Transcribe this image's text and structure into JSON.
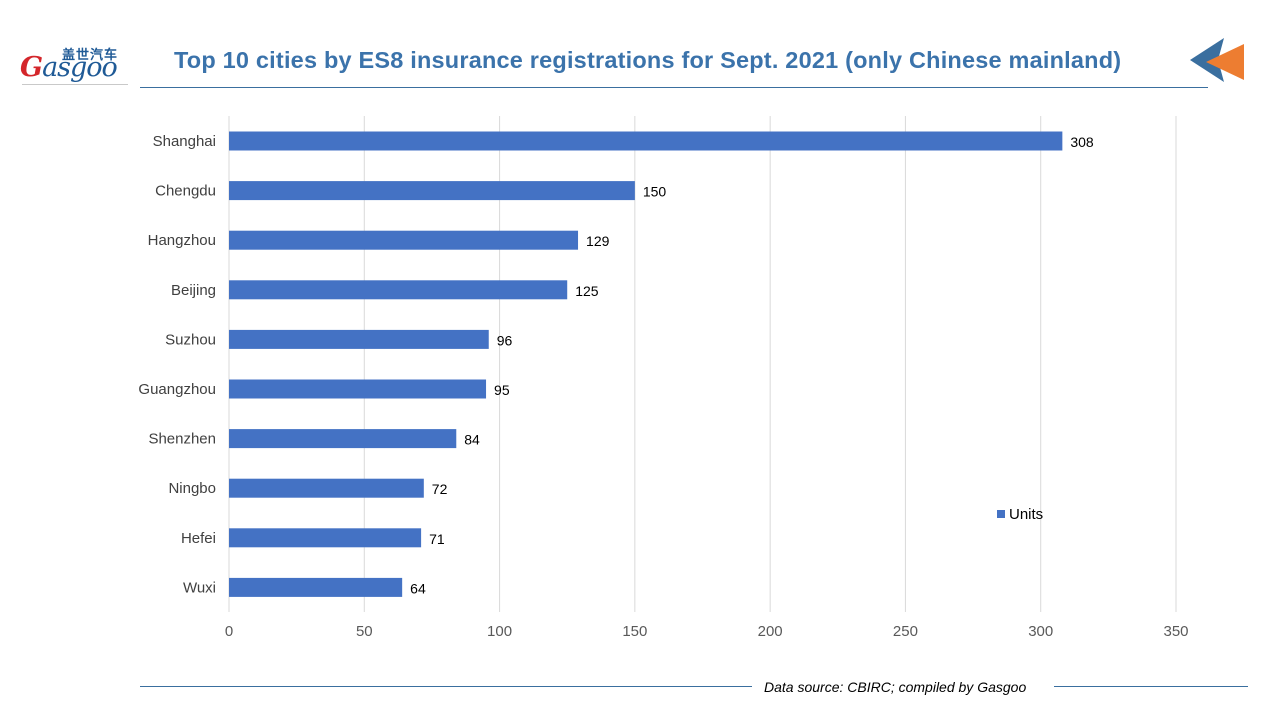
{
  "logo": {
    "cn": "盖世汽车",
    "en_rest": "asgoo"
  },
  "chart_data": {
    "type": "bar",
    "orientation": "horizontal",
    "title": "Top 10 cities by ES8 insurance registrations for Sept. 2021 (only Chinese mainland)",
    "categories": [
      "Shanghai",
      "Chengdu",
      "Hangzhou",
      "Beijing",
      "Suzhou",
      "Guangzhou",
      "Shenzhen",
      "Ningbo",
      "Hefei",
      "Wuxi"
    ],
    "series": [
      {
        "name": "Units",
        "values": [
          308,
          150,
          129,
          125,
          96,
          95,
          84,
          72,
          71,
          64
        ]
      }
    ],
    "xlim": [
      0,
      350
    ],
    "xticks": [
      0,
      50,
      100,
      150,
      200,
      250,
      300,
      350
    ],
    "grid": "vertical",
    "legend_position": "right",
    "data_labels": true,
    "color": "#4472c4"
  },
  "footer": {
    "source": "Data source: CBIRC; compiled by Gasgoo"
  }
}
